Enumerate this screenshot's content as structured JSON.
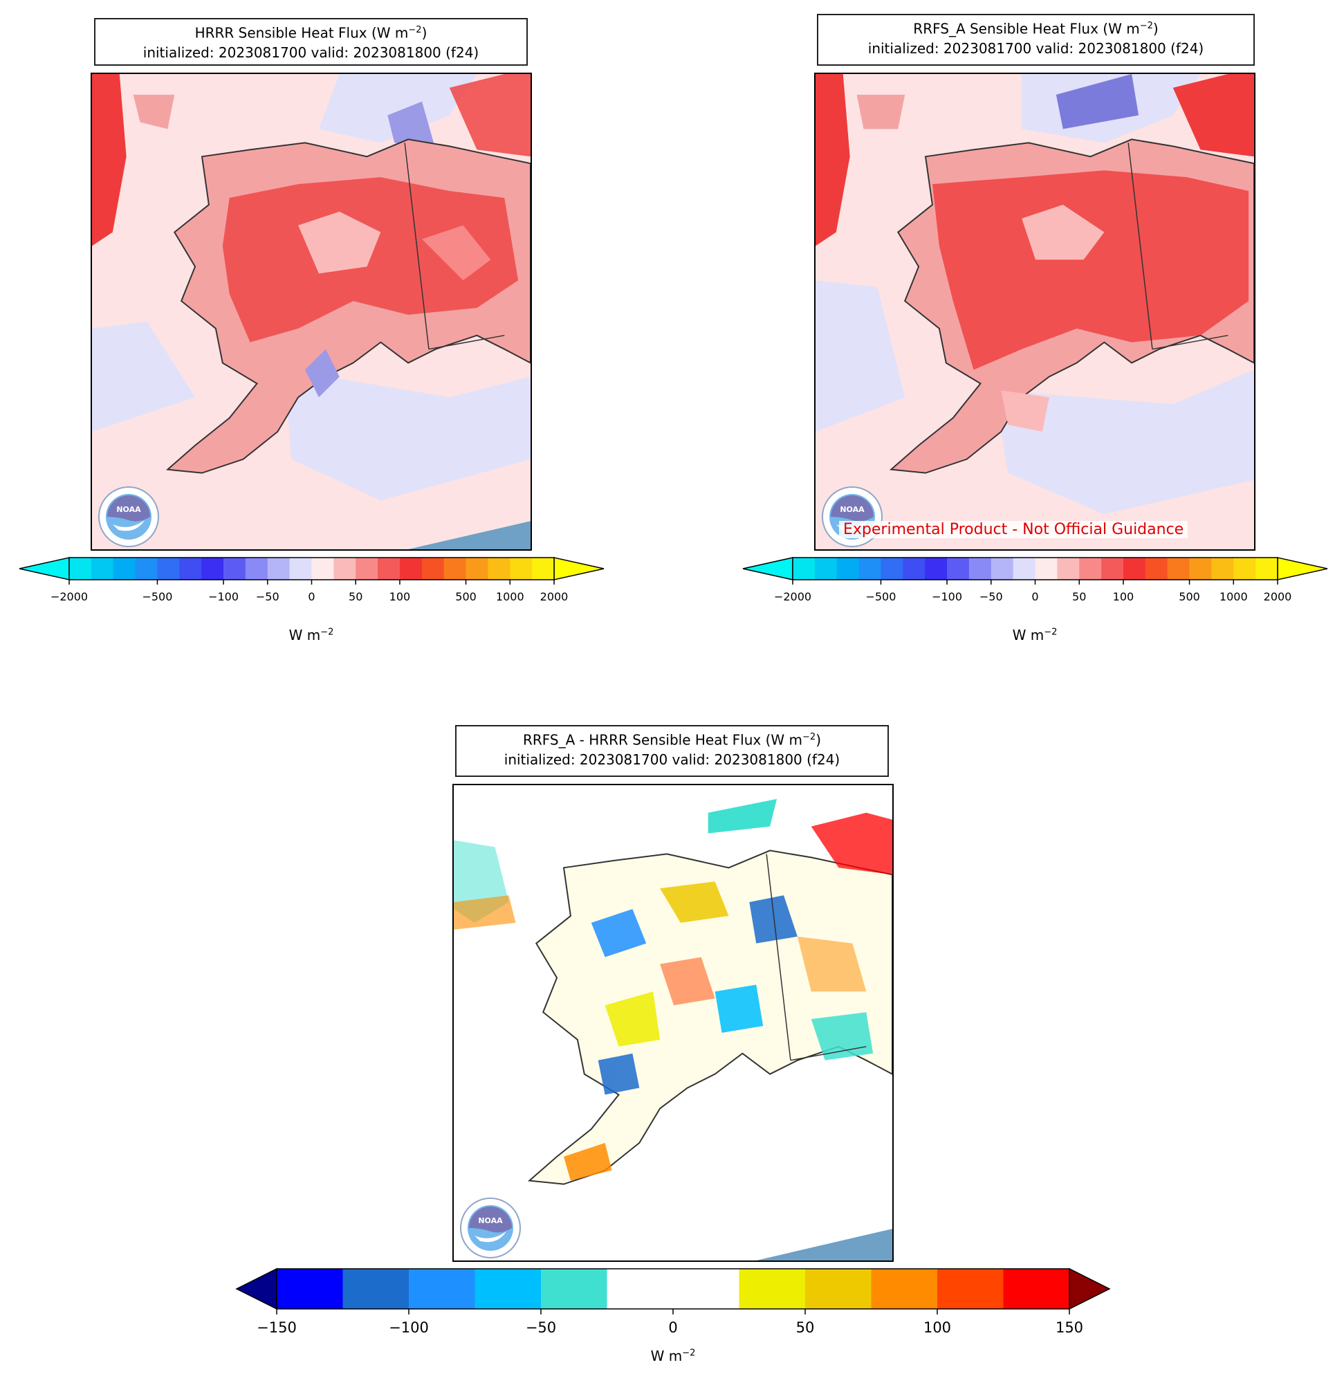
{
  "panels": [
    {
      "id": "hrrr",
      "title_line1": "HRRR Sensible Heat Flux (W m",
      "title_exp": "−2",
      "title_line1_end": ")",
      "title_line2": "initialized: 2023081700 valid: 2023081800 (f24)",
      "land_base": "#f4a3a3",
      "land_hot": "#ef3b3b",
      "sea_color": "#fde3e3",
      "cool_color": "#e1e1fa",
      "blue_patch": "#9a9ae6",
      "logo_text": "NOAA"
    },
    {
      "id": "rrfs",
      "title_line1": "RRFS_A Sensible Heat Flux (W m",
      "title_exp": "−2",
      "title_line1_end": ")",
      "title_line2": "initialized: 2023081700 valid: 2023081800 (f24)",
      "land_base": "#f4a3a3",
      "land_hot": "#ef3b3b",
      "sea_color": "#fde3e3",
      "cool_color": "#e1e1fa",
      "blue_patch": "#7b7bdc",
      "logo_text": "NOAA",
      "watermark": "Experimental Product - Not Official Guidance"
    },
    {
      "id": "diff",
      "title_line1": "RRFS_A - HRRR Sensible Heat Flux (W m",
      "title_exp": "−2",
      "title_line1_end": ")",
      "title_line2": "initialized: 2023081700 valid: 2023081800 (f24)",
      "logo_text": "NOAA"
    }
  ],
  "colorbar_flux": {
    "label": "W m",
    "label_exp": "−2",
    "ticks": [
      "−2000",
      "−500",
      "−100",
      "−50",
      "0",
      "50",
      "100",
      "500",
      "1000",
      "2000"
    ],
    "extend_low": "#00f5f5",
    "extend_high": "#ffff00",
    "colors": [
      "#00e5f0",
      "#00c8f2",
      "#00acf4",
      "#1e8ff6",
      "#2f6ef5",
      "#3e4ef2",
      "#3a2ff2",
      "#5c5cf5",
      "#8a8af6",
      "#b4b4f8",
      "#dedefa",
      "#fdeaea",
      "#fbbaba",
      "#f88989",
      "#f45a5a",
      "#f23434",
      "#f65223",
      "#f87a1c",
      "#f99b19",
      "#fbbc14",
      "#fcd80f",
      "#fdf00a"
    ]
  },
  "colorbar_diff": {
    "label": "W m",
    "label_exp": "−2",
    "ticks": [
      "−150",
      "−100",
      "−50",
      "0",
      "50",
      "100",
      "150"
    ],
    "extend_low": "#00008b",
    "extend_high": "#8b0000",
    "colors": [
      "#0000ff",
      "#1c6ccc",
      "#1f90ff",
      "#00bfff",
      "#40e0d0",
      "#ffffff",
      "#ffffff",
      "#eeee00",
      "#eec900",
      "#ff8c00",
      "#ff4500",
      "#ff0000"
    ]
  }
}
